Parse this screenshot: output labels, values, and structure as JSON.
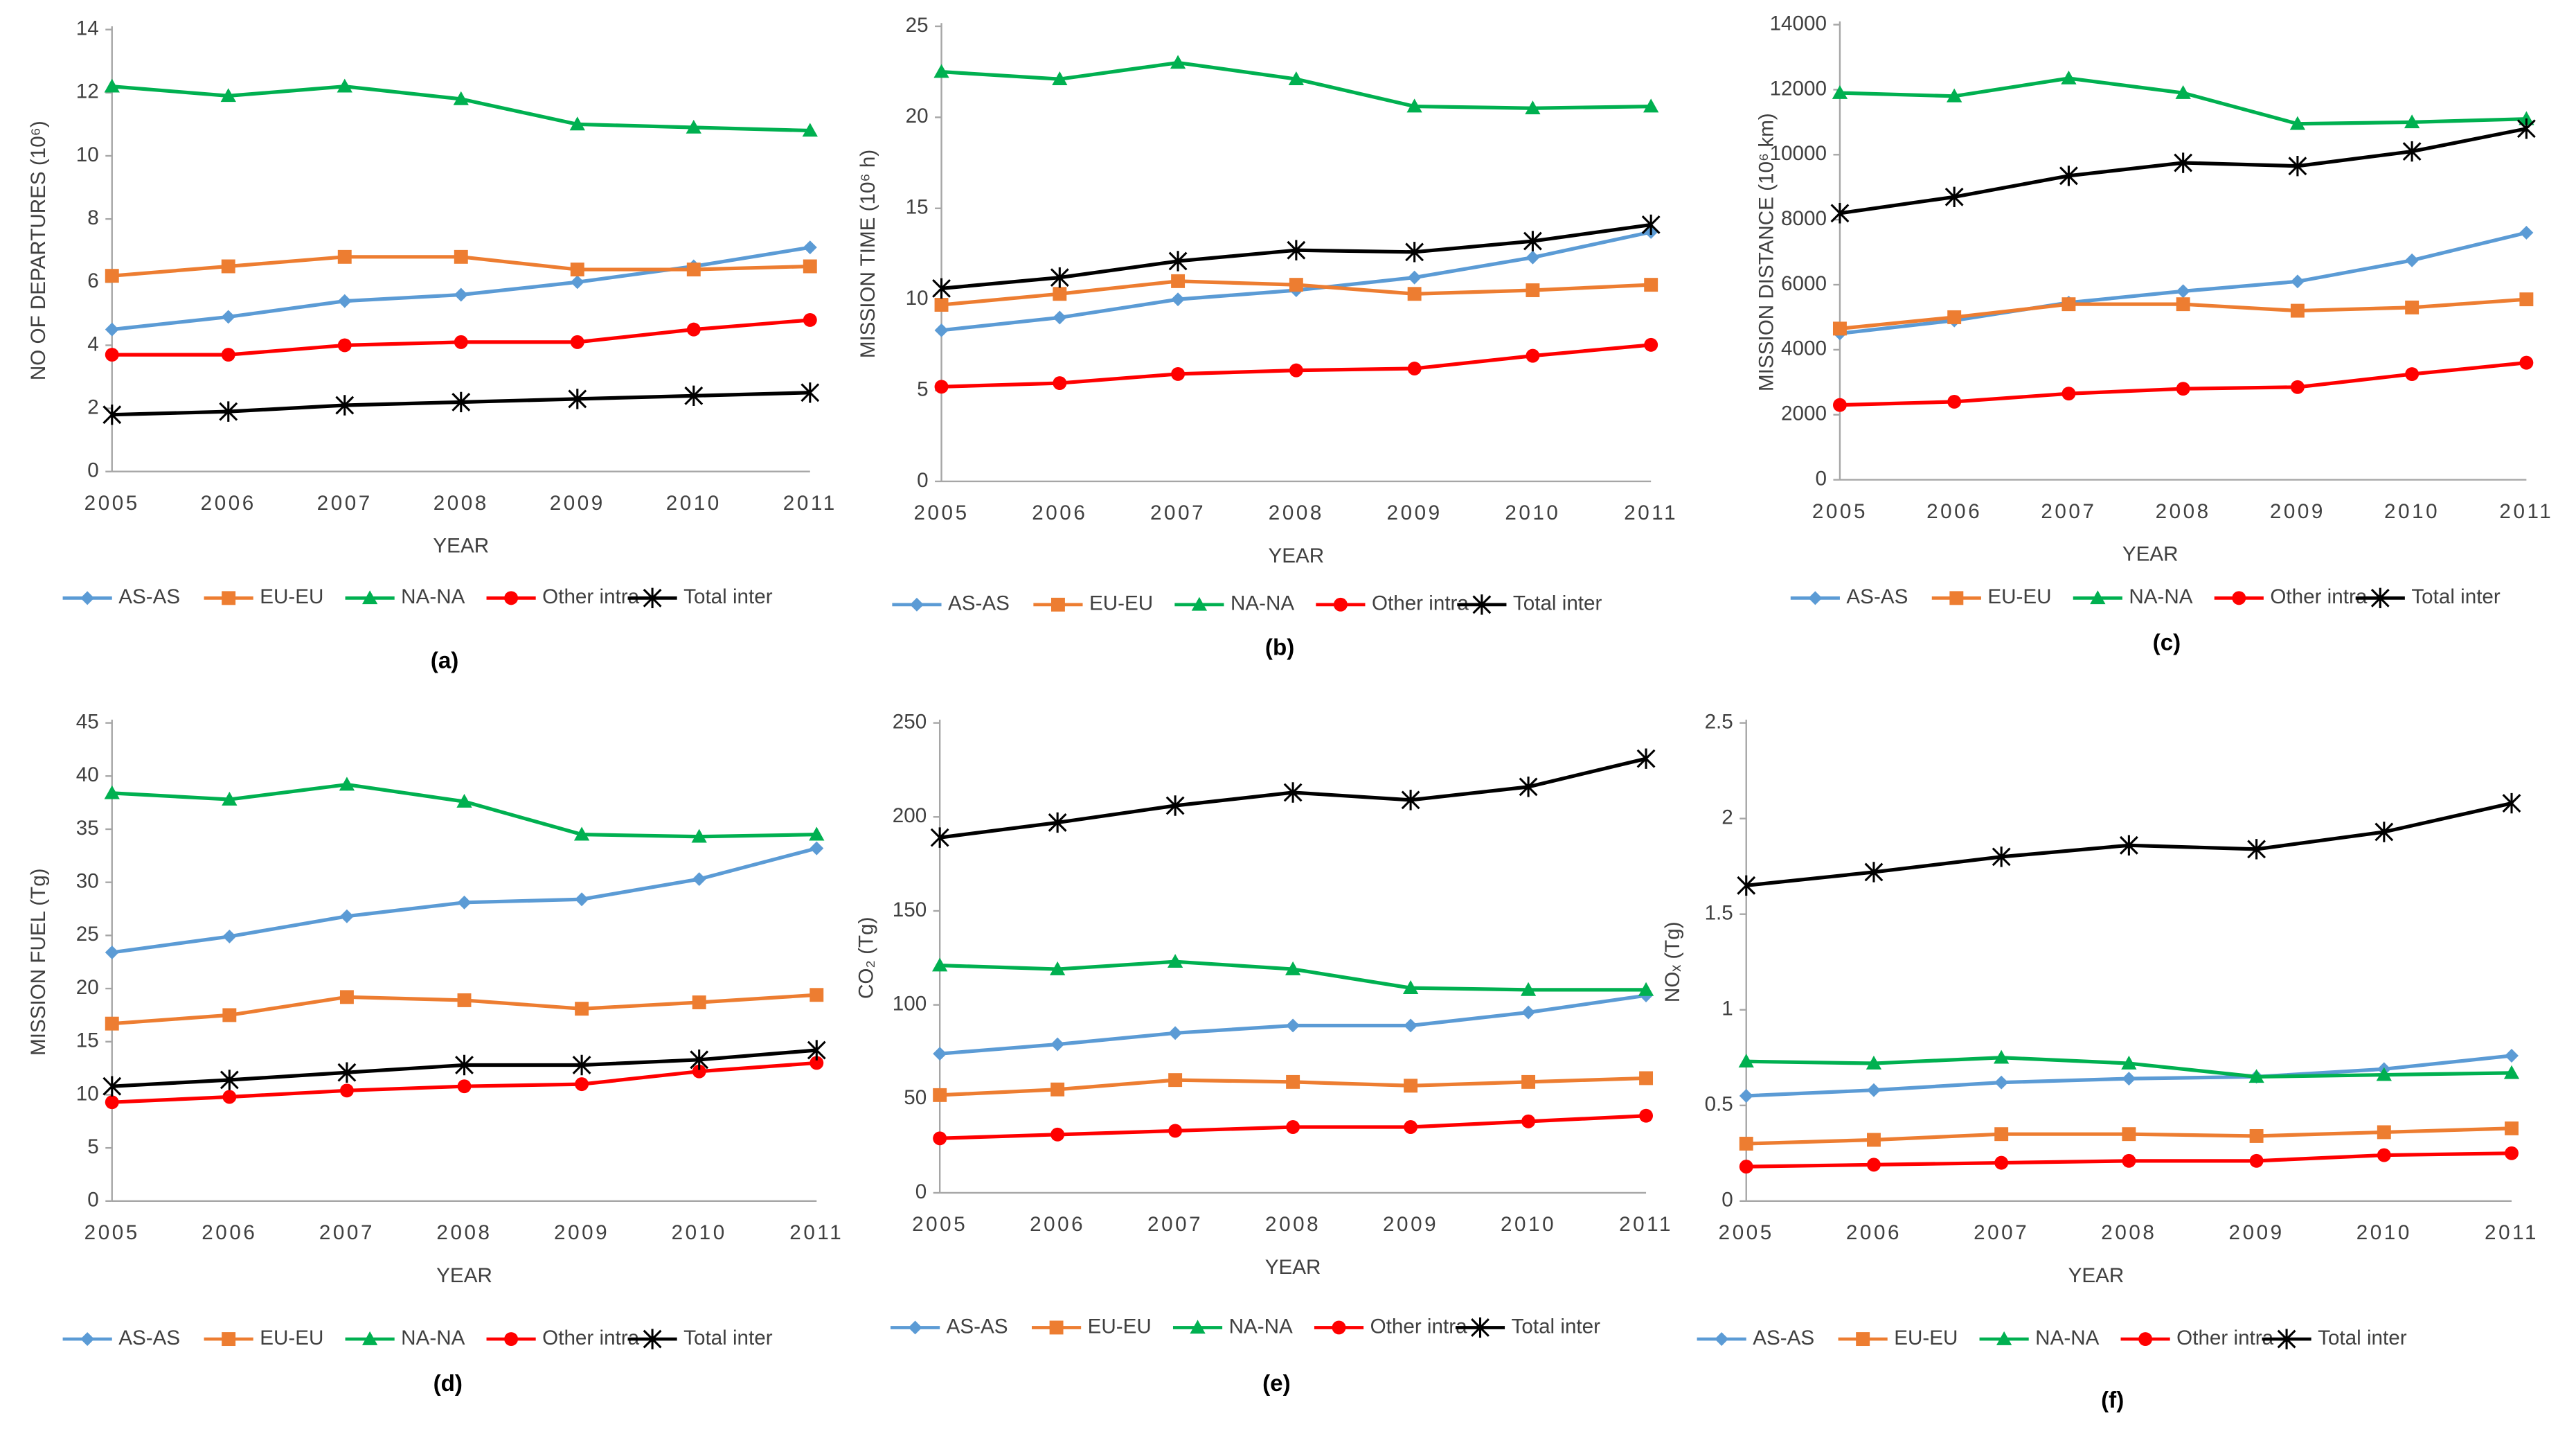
{
  "chart_data": [
    {
      "type": "line",
      "caption": "(a)",
      "xlabel": "YEAR",
      "ylabel": "NO OF DEPARTURES  (10⁶)",
      "categories": [
        "2005",
        "2006",
        "2007",
        "2008",
        "2009",
        "2010",
        "2011"
      ],
      "ylim": [
        0,
        14
      ],
      "yticks": [
        0,
        2,
        4,
        6,
        8,
        10,
        12,
        14
      ],
      "series": [
        {
          "name": "AS-AS",
          "color": "#5b9bd5",
          "marker": "diamond",
          "values": [
            4.5,
            4.9,
            5.4,
            5.6,
            6.0,
            6.5,
            7.1
          ]
        },
        {
          "name": "EU-EU",
          "color": "#ed7d31",
          "marker": "square",
          "values": [
            6.2,
            6.5,
            6.8,
            6.8,
            6.4,
            6.4,
            6.5
          ]
        },
        {
          "name": "NA-NA",
          "color": "#00b050",
          "marker": "triangle",
          "values": [
            12.2,
            11.9,
            12.2,
            11.8,
            11.0,
            10.9,
            10.8
          ]
        },
        {
          "name": "Other intra",
          "color": "#ff0000",
          "marker": "circle",
          "values": [
            3.7,
            3.7,
            4.0,
            4.1,
            4.1,
            4.5,
            4.8
          ]
        },
        {
          "name": "Total inter",
          "color": "#000000",
          "marker": "star",
          "values": [
            1.8,
            1.9,
            2.1,
            2.2,
            2.3,
            2.4,
            2.5
          ]
        }
      ]
    },
    {
      "type": "line",
      "caption": "(b)",
      "xlabel": "YEAR",
      "ylabel": "MISSION TIME (10⁶ h)",
      "categories": [
        "2005",
        "2006",
        "2007",
        "2008",
        "2009",
        "2010",
        "2011"
      ],
      "ylim": [
        0,
        25
      ],
      "yticks": [
        0,
        5,
        10,
        15,
        20,
        25
      ],
      "series": [
        {
          "name": "AS-AS",
          "color": "#5b9bd5",
          "marker": "diamond",
          "values": [
            8.3,
            9.0,
            10.0,
            10.5,
            11.2,
            12.3,
            13.7
          ]
        },
        {
          "name": "EU-EU",
          "color": "#ed7d31",
          "marker": "square",
          "values": [
            9.7,
            10.3,
            11.0,
            10.8,
            10.3,
            10.5,
            10.8
          ]
        },
        {
          "name": "NA-NA",
          "color": "#00b050",
          "marker": "triangle",
          "values": [
            22.5,
            22.1,
            23.0,
            22.1,
            20.6,
            20.5,
            20.6
          ]
        },
        {
          "name": "Other intra",
          "color": "#ff0000",
          "marker": "circle",
          "values": [
            5.2,
            5.4,
            5.9,
            6.1,
            6.2,
            6.9,
            7.5
          ]
        },
        {
          "name": "Total inter",
          "color": "#000000",
          "marker": "star",
          "values": [
            10.6,
            11.2,
            12.1,
            12.7,
            12.6,
            13.2,
            14.1
          ]
        }
      ]
    },
    {
      "type": "line",
      "caption": "(c)",
      "xlabel": "YEAR",
      "ylabel": "MISSION DISTANCE  (10⁶ km)",
      "categories": [
        "2005",
        "2006",
        "2007",
        "2008",
        "2009",
        "2010",
        "2011"
      ],
      "ylim": [
        0,
        14000
      ],
      "yticks": [
        0,
        2000,
        4000,
        6000,
        8000,
        10000,
        12000,
        14000
      ],
      "series": [
        {
          "name": "AS-AS",
          "color": "#5b9bd5",
          "marker": "diamond",
          "values": [
            4500,
            4900,
            5450,
            5800,
            6100,
            6750,
            7600
          ]
        },
        {
          "name": "EU-EU",
          "color": "#ed7d31",
          "marker": "square",
          "values": [
            4650,
            5000,
            5400,
            5400,
            5200,
            5300,
            5550
          ]
        },
        {
          "name": "NA-NA",
          "color": "#00b050",
          "marker": "triangle",
          "values": [
            11900,
            11800,
            12350,
            11900,
            10950,
            11000,
            11100
          ]
        },
        {
          "name": "Other intra",
          "color": "#ff0000",
          "marker": "circle",
          "values": [
            2300,
            2400,
            2650,
            2800,
            2850,
            3250,
            3600
          ]
        },
        {
          "name": "Total inter",
          "color": "#000000",
          "marker": "star",
          "values": [
            8200,
            8700,
            9350,
            9750,
            9650,
            10100,
            10800
          ]
        }
      ]
    },
    {
      "type": "line",
      "caption": "(d)",
      "xlabel": "YEAR",
      "ylabel": "MISSION FUEL  (Tg)",
      "categories": [
        "2005",
        "2006",
        "2007",
        "2008",
        "2009",
        "2010",
        "2011"
      ],
      "ylim": [
        0,
        45
      ],
      "yticks": [
        0,
        5,
        10,
        15,
        20,
        25,
        30,
        35,
        40,
        45
      ],
      "series": [
        {
          "name": "AS-AS",
          "color": "#5b9bd5",
          "marker": "diamond",
          "values": [
            23.4,
            24.9,
            26.8,
            28.1,
            28.4,
            30.3,
            33.2
          ]
        },
        {
          "name": "EU-EU",
          "color": "#ed7d31",
          "marker": "square",
          "values": [
            16.7,
            17.5,
            19.2,
            18.9,
            18.1,
            18.7,
            19.4
          ]
        },
        {
          "name": "NA-NA",
          "color": "#00b050",
          "marker": "triangle",
          "values": [
            38.4,
            37.8,
            39.2,
            37.6,
            34.5,
            34.3,
            34.5
          ]
        },
        {
          "name": "Other intra",
          "color": "#ff0000",
          "marker": "circle",
          "values": [
            9.3,
            9.8,
            10.4,
            10.8,
            11.0,
            12.2,
            13.0
          ]
        },
        {
          "name": "Total inter",
          "color": "#000000",
          "marker": "star",
          "values": [
            10.8,
            11.4,
            12.1,
            12.8,
            12.8,
            13.3,
            14.2
          ]
        }
      ]
    },
    {
      "type": "line",
      "caption": "(e)",
      "xlabel": "YEAR",
      "ylabel": "CO₂ (Tg)",
      "categories": [
        "2005",
        "2006",
        "2007",
        "2008",
        "2009",
        "2010",
        "2011"
      ],
      "ylim": [
        0,
        250
      ],
      "yticks": [
        0,
        50,
        100,
        150,
        200,
        250
      ],
      "series": [
        {
          "name": "AS-AS",
          "color": "#5b9bd5",
          "marker": "diamond",
          "values": [
            74,
            79,
            85,
            89,
            89,
            96,
            105
          ]
        },
        {
          "name": "EU-EU",
          "color": "#ed7d31",
          "marker": "square",
          "values": [
            52,
            55,
            60,
            59,
            57,
            59,
            61
          ]
        },
        {
          "name": "NA-NA",
          "color": "#00b050",
          "marker": "triangle",
          "values": [
            121,
            119,
            123,
            119,
            109,
            108,
            108
          ]
        },
        {
          "name": "Other intra",
          "color": "#ff0000",
          "marker": "circle",
          "values": [
            29,
            31,
            33,
            35,
            35,
            38,
            41
          ]
        },
        {
          "name": "Total inter",
          "color": "#000000",
          "marker": "star",
          "values": [
            189,
            197,
            206,
            213,
            209,
            216,
            231
          ]
        }
      ]
    },
    {
      "type": "line",
      "caption": "(f)",
      "xlabel": "YEAR",
      "ylabel": "NOₓ (Tg)",
      "categories": [
        "2005",
        "2006",
        "2007",
        "2008",
        "2009",
        "2010",
        "2011"
      ],
      "ylim": [
        0,
        2.5
      ],
      "yticks": [
        0,
        0.5,
        1,
        1.5,
        2,
        2.5
      ],
      "series": [
        {
          "name": "AS-AS",
          "color": "#5b9bd5",
          "marker": "diamond",
          "values": [
            0.55,
            0.58,
            0.62,
            0.64,
            0.65,
            0.69,
            0.76
          ]
        },
        {
          "name": "EU-EU",
          "color": "#ed7d31",
          "marker": "square",
          "values": [
            0.3,
            0.32,
            0.35,
            0.35,
            0.34,
            0.36,
            0.38
          ]
        },
        {
          "name": "NA-NA",
          "color": "#00b050",
          "marker": "triangle",
          "values": [
            0.73,
            0.72,
            0.75,
            0.72,
            0.65,
            0.66,
            0.67
          ]
        },
        {
          "name": "Other intra",
          "color": "#ff0000",
          "marker": "circle",
          "values": [
            0.18,
            0.19,
            0.2,
            0.21,
            0.21,
            0.24,
            0.25
          ]
        },
        {
          "name": "Total inter",
          "color": "#000000",
          "marker": "star",
          "values": [
            1.65,
            1.72,
            1.8,
            1.86,
            1.84,
            1.93,
            2.08
          ]
        }
      ]
    }
  ]
}
